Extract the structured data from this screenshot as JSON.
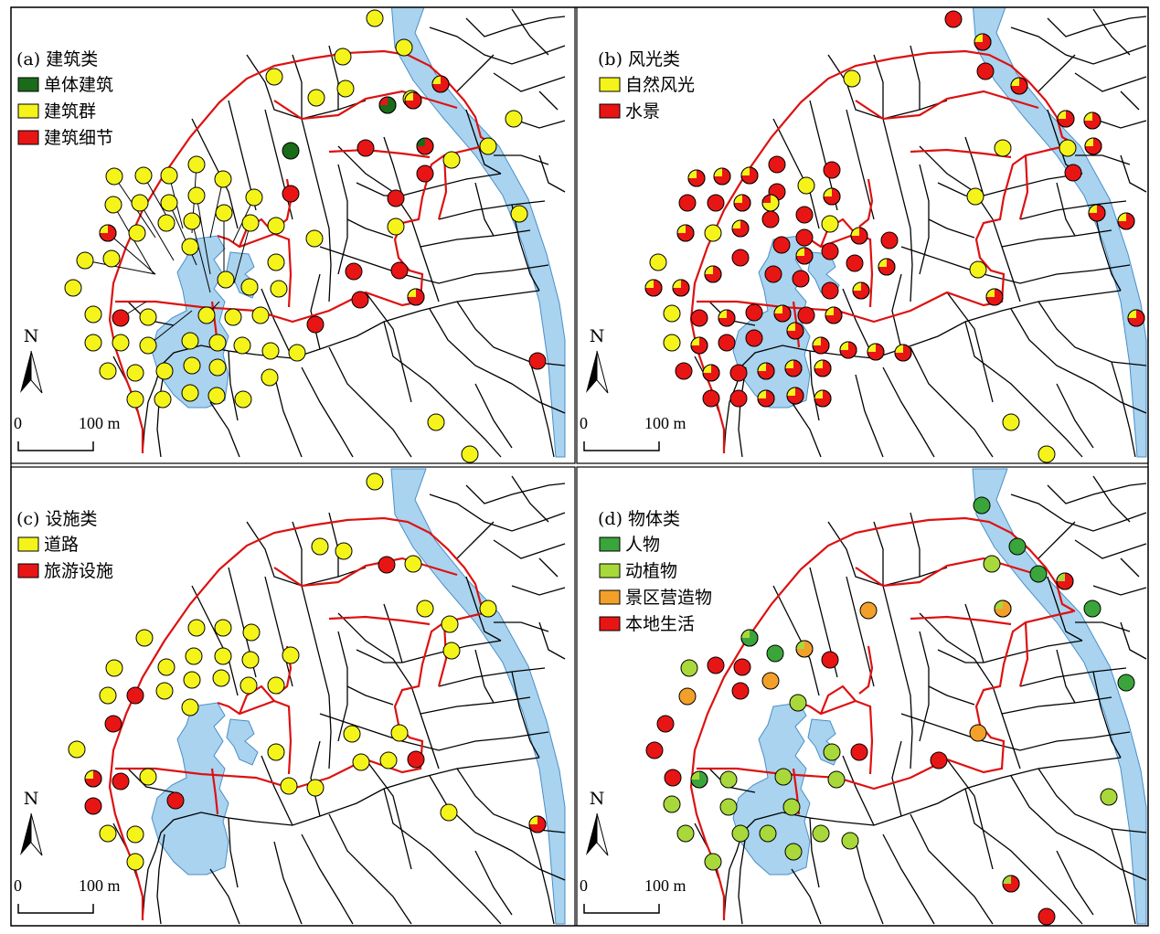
{
  "colors": {
    "road": "#000000",
    "route": "#dd1111",
    "water_fill": "#a9d3ee",
    "water_edge": "#4a8ec9",
    "dark_green": "#1a6b1a",
    "yellow": "#f4f41a",
    "red": "#e81515",
    "green": "#3aa53a",
    "light_green": "#a8d83a",
    "orange": "#f2a02a"
  },
  "common": {
    "north_label": "N",
    "scale_zero": "0",
    "scale_label": "100 m"
  },
  "panels": [
    {
      "id": "a",
      "title": "(a) 建筑类",
      "legend": [
        {
          "label": "单体建筑",
          "color": "#1a6b1a"
        },
        {
          "label": "建筑群",
          "color": "#f4f41a"
        },
        {
          "label": "建筑细节",
          "color": "#e81515"
        }
      ]
    },
    {
      "id": "b",
      "title": "(b) 风光类",
      "legend": [
        {
          "label": "自然风光",
          "color": "#f4f41a"
        },
        {
          "label": "水景",
          "color": "#e81515"
        }
      ]
    },
    {
      "id": "c",
      "title": "(c) 设施类",
      "legend": [
        {
          "label": "道路",
          "color": "#f4f41a"
        },
        {
          "label": "旅游设施",
          "color": "#e81515"
        }
      ]
    },
    {
      "id": "d",
      "title": "(d) 物体类",
      "legend": [
        {
          "label": "人物",
          "color": "#3aa53a"
        },
        {
          "label": "动植物",
          "color": "#a8d83a"
        },
        {
          "label": "景区营造物",
          "color": "#f2a02a"
        },
        {
          "label": "本地生活",
          "color": "#e81515"
        }
      ]
    }
  ]
}
